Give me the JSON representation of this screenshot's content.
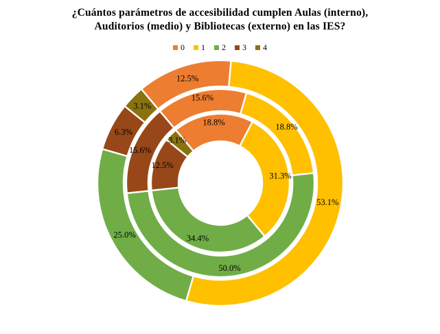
{
  "chart_data": {
    "type": "donut",
    "title": "¿Cuántos parámetros de accesibilidad cumplen Aulas (interno), Auditorios (medio) y Bibliotecas (externo) en las IES?",
    "title_lines": [
      "¿Cuántos parámetros de accesibilidad cumplen Aulas (interno),",
      "Auditorios  (medio) y Bibliotecas (externo) en las IES?"
    ],
    "categories": [
      "0",
      "1",
      "2",
      "3",
      "4"
    ],
    "colors": [
      "#ED7D31",
      "#FFC000",
      "#70AD47",
      "#984818",
      "#8A730F"
    ],
    "start_angle_deg": -40,
    "legend_position": "top",
    "grid": false,
    "background_color": "#FFFFFF",
    "segment_border_color": "#FFFFFF",
    "rings": [
      {
        "name": "Aulas (interno)",
        "position": "inner",
        "values": [
          18.8,
          31.3,
          34.4,
          12.5,
          3.1
        ],
        "labels": [
          "18.8%",
          "31.3%",
          "34.4%",
          "12.5%",
          "3.1%"
        ]
      },
      {
        "name": "Auditorios (medio)",
        "position": "middle",
        "values": [
          15.6,
          18.8,
          50.0,
          15.6,
          0
        ],
        "labels": [
          "15.6%",
          "18.8%",
          "50.0%",
          "15.6%",
          ""
        ]
      },
      {
        "name": "Bibliotecas (externo)",
        "position": "outer",
        "values": [
          12.5,
          53.1,
          25.0,
          6.3,
          3.1
        ],
        "labels": [
          "12.5%",
          "53.1%",
          "25.0%",
          "6.3%",
          "3.1%"
        ]
      }
    ]
  }
}
